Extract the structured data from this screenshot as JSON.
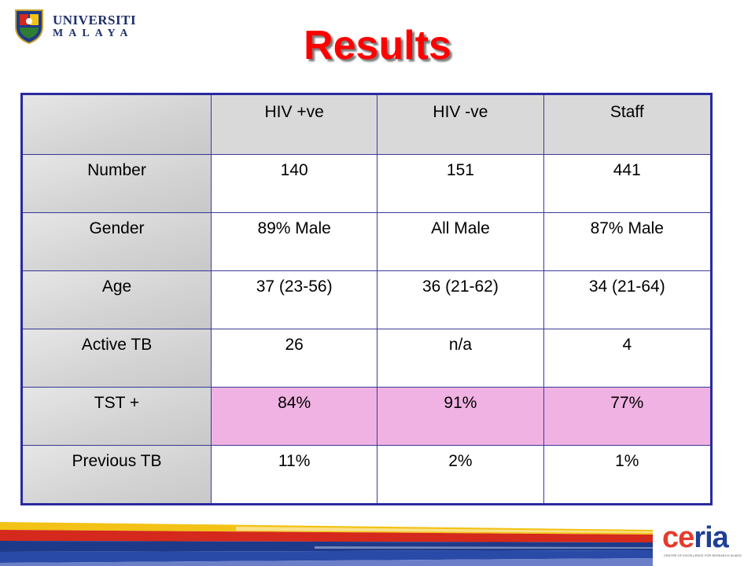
{
  "logo": {
    "line1": "UNIVERSITI",
    "line2": "MALAYA"
  },
  "title": "Results",
  "table": {
    "header": [
      "",
      "HIV +ve",
      "HIV -ve",
      "Staff"
    ],
    "rows": [
      {
        "label": "Number",
        "cells": [
          "140",
          "151",
          "441"
        ]
      },
      {
        "label": "Gender",
        "cells": [
          "89% Male",
          "All Male",
          "87% Male"
        ]
      },
      {
        "label": "Age",
        "cells": [
          "37 (23-56)",
          "36 (21-62)",
          "34 (21-64)"
        ]
      },
      {
        "label": "Active TB",
        "cells": [
          "26",
          "n/a",
          "4"
        ]
      },
      {
        "label": "TST +",
        "cells": [
          "84%",
          "91%",
          "77%"
        ]
      },
      {
        "label": "Previous TB",
        "cells": [
          "11%",
          "2%",
          "1%"
        ]
      }
    ]
  },
  "footer_logo": {
    "word_a": "ce",
    "word_b": "ria",
    "tagline": "CENTRE OF EXCELLENCE FOR RESEARCH IN AIDS"
  },
  "colors": {
    "title": "#ff0000",
    "table_border": "#2a2aa0",
    "highlight_row": "#f0b2e2",
    "header_gray": "#d9d9d9"
  }
}
